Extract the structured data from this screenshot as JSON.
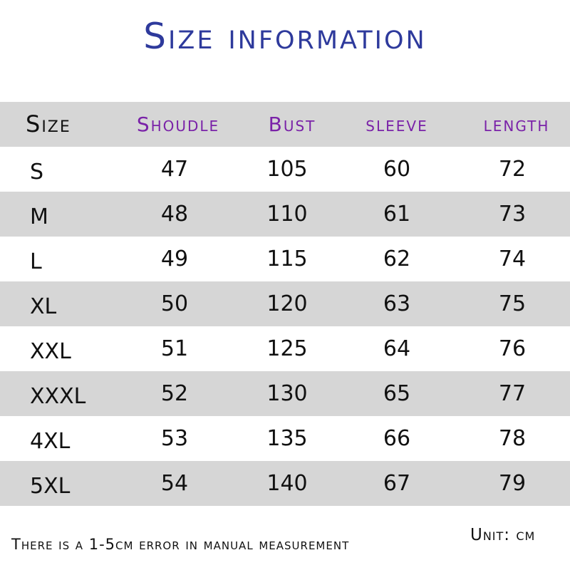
{
  "title": "Size information",
  "colors": {
    "title": "#2e3a9c",
    "header_text": "#7a22a8",
    "band": "#d6d6d6"
  },
  "table": {
    "headers": [
      "Size",
      "Shoudle",
      "Bust",
      "sleeve",
      "length"
    ],
    "rows": [
      [
        "S",
        "47",
        "105",
        "60",
        "72"
      ],
      [
        "M",
        "48",
        "110",
        "61",
        "73"
      ],
      [
        "L",
        "49",
        "115",
        "62",
        "74"
      ],
      [
        "XL",
        "50",
        "120",
        "63",
        "75"
      ],
      [
        "XXL",
        "51",
        "125",
        "64",
        "76"
      ],
      [
        "XXXL",
        "52",
        "130",
        "65",
        "77"
      ],
      [
        "4XL",
        "53",
        "135",
        "66",
        "78"
      ],
      [
        "5XL",
        "54",
        "140",
        "67",
        "79"
      ]
    ]
  },
  "footer": {
    "note": "There is a 1-5cm error in manual measurement",
    "unit": "Unit: cm"
  }
}
